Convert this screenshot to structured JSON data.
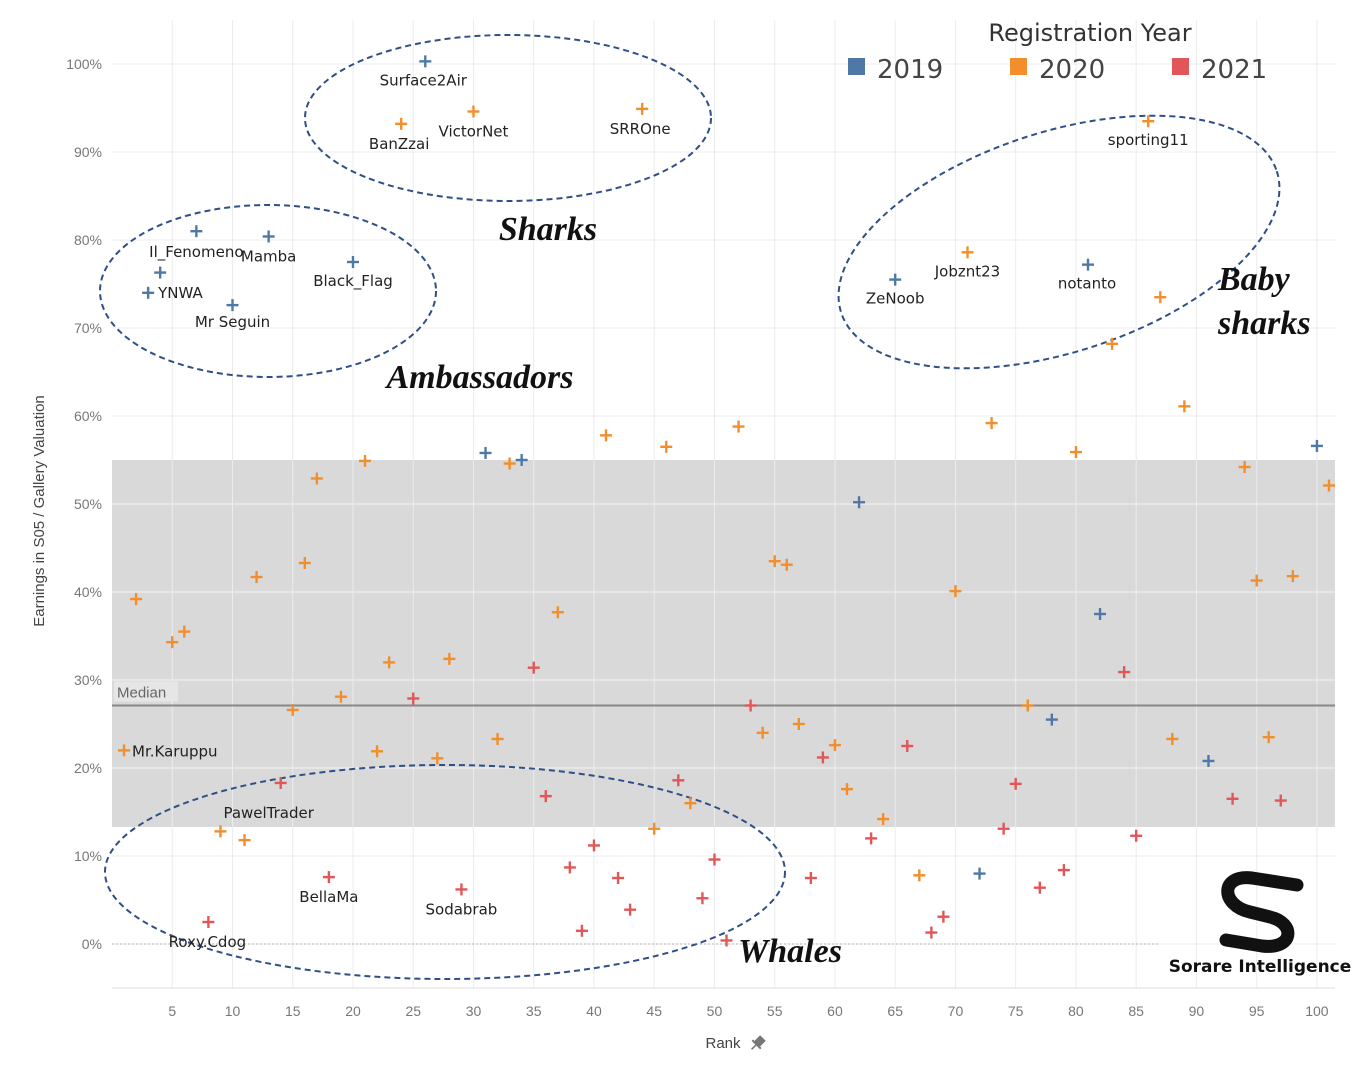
{
  "chart_data": {
    "type": "scatter",
    "xlabel": "Rank",
    "ylabel": "Earnings in S05 / Gallery Valuation",
    "xlim": [
      0,
      101.5
    ],
    "ylim": [
      -5,
      105
    ],
    "x_ticks": [
      5,
      10,
      15,
      20,
      25,
      30,
      35,
      40,
      45,
      50,
      55,
      60,
      65,
      70,
      75,
      80,
      85,
      90,
      95,
      100
    ],
    "y_ticks": [
      0,
      10,
      20,
      30,
      40,
      50,
      60,
      70,
      80,
      90,
      100
    ],
    "y_tick_labels": [
      "0%",
      "10%",
      "20%",
      "30%",
      "40%",
      "50%",
      "60%",
      "70%",
      "80%",
      "90%",
      "100%"
    ],
    "grid": true,
    "legend": {
      "title": "Registration Year",
      "position": "top-right",
      "items": [
        {
          "label": "2019",
          "color": "#4e79a7"
        },
        {
          "label": "2020",
          "color": "#f28e2b"
        },
        {
          "label": "2021",
          "color": "#e15759"
        }
      ]
    },
    "band": {
      "y_low": 13.3,
      "y_high": 55,
      "color": "#d9d9d9"
    },
    "median": {
      "label": "Median",
      "y": 27.1
    },
    "series": [
      {
        "name": "2019",
        "color": "#4e79a7",
        "points": [
          {
            "x": 3,
            "y": 74,
            "label": "YNWA"
          },
          {
            "x": 4,
            "y": 76.3
          },
          {
            "x": 7,
            "y": 81,
            "label": "Il_Fenomeno"
          },
          {
            "x": 10,
            "y": 72.6,
            "label": "Mr Seguin"
          },
          {
            "x": 13,
            "y": 80.4,
            "label": "Mamba"
          },
          {
            "x": 20,
            "y": 77.5,
            "label": "Black_Flag"
          },
          {
            "x": 26,
            "y": 100.3,
            "label": "Surface2Air"
          },
          {
            "x": 31,
            "y": 55.8
          },
          {
            "x": 34,
            "y": 55
          },
          {
            "x": 62,
            "y": 50.2
          },
          {
            "x": 65,
            "y": 75.5,
            "label": "ZeNoob"
          },
          {
            "x": 72,
            "y": 8
          },
          {
            "x": 78,
            "y": 25.5
          },
          {
            "x": 81,
            "y": 77.2,
            "label": "notanto"
          },
          {
            "x": 82,
            "y": 37.5
          },
          {
            "x": 91,
            "y": 20.8
          },
          {
            "x": 100,
            "y": 56.6
          }
        ]
      },
      {
        "name": "2020",
        "color": "#f28e2b",
        "points": [
          {
            "x": 1,
            "y": 22,
            "label": "Mr.Karuppu"
          },
          {
            "x": 2,
            "y": 39.2
          },
          {
            "x": 5,
            "y": 34.3
          },
          {
            "x": 6,
            "y": 35.5
          },
          {
            "x": 9,
            "y": 12.8
          },
          {
            "x": 11,
            "y": 11.8
          },
          {
            "x": 12,
            "y": 41.7
          },
          {
            "x": 15,
            "y": 26.6
          },
          {
            "x": 16,
            "y": 43.3
          },
          {
            "x": 17,
            "y": 52.9
          },
          {
            "x": 19,
            "y": 28.1
          },
          {
            "x": 21,
            "y": 54.9
          },
          {
            "x": 22,
            "y": 21.9
          },
          {
            "x": 23,
            "y": 32
          },
          {
            "x": 24,
            "y": 93.2,
            "label": "BanZzai"
          },
          {
            "x": 27,
            "y": 21.1
          },
          {
            "x": 28,
            "y": 32.4
          },
          {
            "x": 30,
            "y": 94.6,
            "label": "VictorNet"
          },
          {
            "x": 32,
            "y": 23.3
          },
          {
            "x": 33,
            "y": 54.6
          },
          {
            "x": 37,
            "y": 37.7
          },
          {
            "x": 41,
            "y": 57.8
          },
          {
            "x": 44,
            "y": 94.9,
            "label": "SRROne"
          },
          {
            "x": 45,
            "y": 13.1
          },
          {
            "x": 46,
            "y": 56.5
          },
          {
            "x": 48,
            "y": 16
          },
          {
            "x": 52,
            "y": 58.8
          },
          {
            "x": 54,
            "y": 24
          },
          {
            "x": 55,
            "y": 43.5
          },
          {
            "x": 56,
            "y": 43.1
          },
          {
            "x": 57,
            "y": 25
          },
          {
            "x": 60,
            "y": 22.6
          },
          {
            "x": 61,
            "y": 17.6
          },
          {
            "x": 64,
            "y": 14.2
          },
          {
            "x": 67,
            "y": 7.8
          },
          {
            "x": 70,
            "y": 40.1
          },
          {
            "x": 71,
            "y": 78.6,
            "label": "Jobznt23"
          },
          {
            "x": 73,
            "y": 59.2
          },
          {
            "x": 76,
            "y": 27.1
          },
          {
            "x": 80,
            "y": 55.9
          },
          {
            "x": 83,
            "y": 68.2
          },
          {
            "x": 86,
            "y": 93.5,
            "label": "sporting11"
          },
          {
            "x": 87,
            "y": 73.5
          },
          {
            "x": 88,
            "y": 23.3
          },
          {
            "x": 89,
            "y": 61.1
          },
          {
            "x": 94,
            "y": 54.2
          },
          {
            "x": 95,
            "y": 41.3
          },
          {
            "x": 96,
            "y": 23.5
          },
          {
            "x": 98,
            "y": 41.8
          },
          {
            "x": 101,
            "y": 52.1
          }
        ]
      },
      {
        "name": "2021",
        "color": "#e15759",
        "points": [
          {
            "x": 8,
            "y": 2.5,
            "label": "Roxy.Cdog"
          },
          {
            "x": 14,
            "y": 18.3,
            "label": "PawelTrader"
          },
          {
            "x": 18,
            "y": 7.6,
            "label": "BellaMa"
          },
          {
            "x": 25,
            "y": 27.9
          },
          {
            "x": 29,
            "y": 6.2,
            "label": "Sodabrab"
          },
          {
            "x": 35,
            "y": 31.4
          },
          {
            "x": 36,
            "y": 16.8
          },
          {
            "x": 38,
            "y": 8.7
          },
          {
            "x": 39,
            "y": 1.5
          },
          {
            "x": 40,
            "y": 11.2
          },
          {
            "x": 42,
            "y": 7.5
          },
          {
            "x": 43,
            "y": 3.9
          },
          {
            "x": 47,
            "y": 18.6
          },
          {
            "x": 49,
            "y": 5.2
          },
          {
            "x": 50,
            "y": 9.6
          },
          {
            "x": 51,
            "y": 0.4
          },
          {
            "x": 53,
            "y": 27.1
          },
          {
            "x": 58,
            "y": 7.5
          },
          {
            "x": 59,
            "y": 21.2
          },
          {
            "x": 63,
            "y": 12
          },
          {
            "x": 66,
            "y": 22.5
          },
          {
            "x": 68,
            "y": 1.3
          },
          {
            "x": 69,
            "y": 3.1
          },
          {
            "x": 74,
            "y": 13.1
          },
          {
            "x": 75,
            "y": 18.2
          },
          {
            "x": 77,
            "y": 6.4
          },
          {
            "x": 79,
            "y": 8.4
          },
          {
            "x": 84,
            "y": 30.9
          },
          {
            "x": 85,
            "y": 12.3
          },
          {
            "x": 93,
            "y": 16.5
          },
          {
            "x": 97,
            "y": 16.3
          }
        ]
      }
    ],
    "groups": [
      {
        "label": "Sharks"
      },
      {
        "label": "Ambassadors"
      },
      {
        "label": "Baby\nsharks"
      },
      {
        "label": "Whales"
      }
    ]
  },
  "brand": {
    "name": "Sorare Intelligence"
  }
}
